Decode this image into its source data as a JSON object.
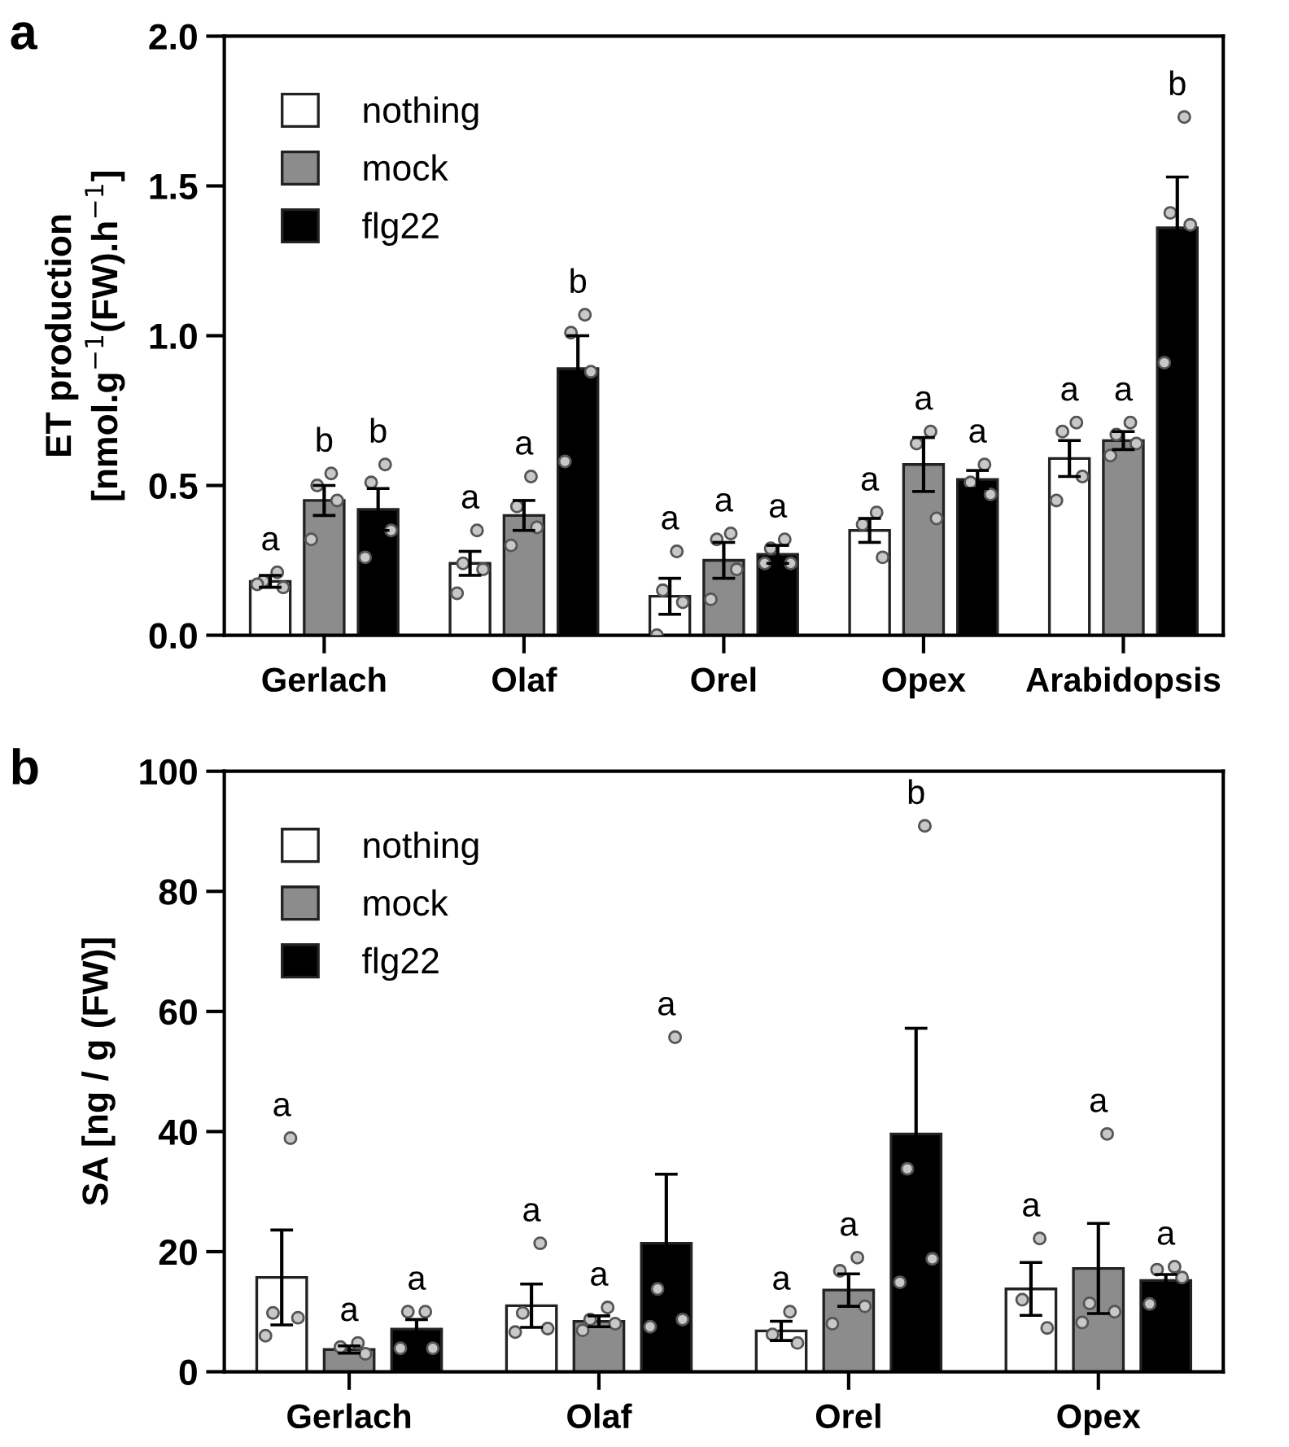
{
  "chart_data": [
    {
      "type": "bar",
      "title": "a",
      "ylabel": "ET production\n[nmol.g$^{−1}$(FW).h$^{−1}$]",
      "categories": [
        "Gerlach",
        "Olaf",
        "Orel",
        "Opex",
        "Arabidopsis"
      ],
      "ylim": [
        0,
        2.0
      ],
      "yticks": [
        {
          "value": 0,
          "label": "0.0"
        },
        0.5,
        {
          "value": 1,
          "label": "1.0"
        },
        1.5,
        {
          "value": 2,
          "label": "2.0"
        }
      ],
      "grid": false,
      "legend": "top left",
      "marker": "circle",
      "annotations": [
        "a",
        "b",
        "b",
        "a",
        "a",
        "b",
        "a",
        "a",
        "a",
        "a",
        "a",
        "a",
        "a",
        "a",
        "b"
      ],
      "series": [
        {
          "name": "nothing",
          "color": "#ffffff",
          "values": [
            0.18,
            0.24,
            0.13,
            0.35,
            0.59
          ],
          "errors": [
            0.02,
            0.04,
            0.06,
            0.04,
            0.06
          ]
        },
        {
          "name": "mock",
          "color": "#8c8c8c",
          "values": [
            0.45,
            0.4,
            0.25,
            0.57,
            0.65
          ],
          "errors": [
            0.05,
            0.05,
            0.06,
            0.09,
            0.03
          ]
        },
        {
          "name": "flg22",
          "color": "#000000",
          "values": [
            0.42,
            0.89,
            0.27,
            0.52,
            1.36
          ],
          "errors": [
            0.07,
            0.11,
            0.03,
            0.03,
            0.17
          ]
        },
        {
          "type": "scatter",
          "color": "#c8c8c8",
          "x": [
            "Gerlach",
            "Gerlach",
            "Gerlach",
            "Gerlach",
            "Olaf",
            "Olaf",
            "Olaf",
            "Olaf",
            "Orel",
            "Orel",
            "Orel",
            "Orel",
            "Opex",
            "Opex",
            "Opex",
            "Arabidopsis",
            "Arabidopsis",
            "Arabidopsis",
            "Arabidopsis"
          ],
          "values": [
            0.21,
            0.18,
            0.16,
            0.17,
            0.35,
            0.24,
            0.22,
            0.14,
            0.28,
            0.15,
            0.11,
            0.0,
            0.41,
            0.37,
            0.26,
            0.71,
            0.68,
            0.53,
            0.45
          ]
        },
        {
          "type": "scatter",
          "color": "#c8c8c8",
          "x": [
            "Gerlach",
            "Gerlach",
            "Gerlach",
            "Gerlach",
            "Olaf",
            "Olaf",
            "Olaf",
            "Olaf",
            "Orel",
            "Orel",
            "Orel",
            "Orel",
            "Opex",
            "Opex",
            "Opex",
            "Arabidopsis",
            "Arabidopsis",
            "Arabidopsis",
            "Arabidopsis"
          ],
          "values": [
            0.54,
            0.5,
            0.45,
            0.32,
            0.53,
            0.43,
            0.36,
            0.3,
            0.34,
            0.32,
            0.22,
            0.12,
            0.68,
            0.64,
            0.39,
            0.71,
            0.67,
            0.64,
            0.6
          ]
        },
        {
          "type": "scatter",
          "color": "#c8c8c8",
          "x": [
            "Gerlach",
            "Gerlach",
            "Gerlach",
            "Gerlach",
            "Olaf",
            "Olaf",
            "Olaf",
            "Olaf",
            "Orel",
            "Orel",
            "Orel",
            "Orel",
            "Opex",
            "Opex",
            "Opex",
            "Arabidopsis",
            "Arabidopsis",
            "Arabidopsis",
            "Arabidopsis"
          ],
          "values": [
            0.57,
            0.51,
            0.35,
            0.26,
            1.07,
            1.01,
            0.88,
            0.58,
            0.32,
            0.29,
            0.24,
            0.24,
            0.57,
            0.51,
            0.47,
            1.73,
            1.41,
            1.37,
            0.91
          ]
        }
      ]
    },
    {
      "type": "bar",
      "title": "b",
      "ylabel": "SA [ng / g (FW)]",
      "categories": [
        "Gerlach",
        "Olaf",
        "Orel",
        "Opex"
      ],
      "ylim": [
        0,
        100
      ],
      "yticks": [
        0,
        20,
        40,
        60,
        80,
        100
      ],
      "grid": false,
      "legend": "top left",
      "marker": "circle",
      "annotations": [
        "a",
        "a",
        "a",
        "a",
        "a",
        "a",
        "a",
        "a",
        "b",
        "a",
        "a",
        "a"
      ],
      "series": [
        {
          "name": "nothing",
          "color": "#ffffff",
          "values": [
            15.7,
            11.0,
            6.8,
            13.8
          ],
          "errors": [
            7.9,
            3.6,
            1.6,
            4.4
          ]
        },
        {
          "name": "mock",
          "color": "#8c8c8c",
          "values": [
            3.7,
            8.4,
            13.6,
            17.2
          ],
          "errors": [
            0.6,
            0.9,
            2.7,
            7.5
          ]
        },
        {
          "name": "flg22",
          "color": "#000000",
          "values": [
            7.1,
            21.4,
            39.6,
            15.2
          ],
          "errors": [
            1.6,
            11.5,
            17.6,
            1.0
          ]
        },
        {
          "type": "scatter",
          "color": "#c8c8c8",
          "x": [
            "Gerlach",
            "Gerlach",
            "Gerlach",
            "Gerlach",
            "Olaf",
            "Olaf",
            "Olaf",
            "Olaf",
            "Orel",
            "Orel",
            "Orel",
            "Opex",
            "Opex",
            "Opex"
          ],
          "values": [
            38.9,
            9.8,
            9.0,
            6.0,
            21.4,
            9.8,
            7.2,
            6.6,
            10.0,
            6.2,
            4.8,
            22.2,
            12.0,
            7.3
          ]
        },
        {
          "type": "scatter",
          "color": "#c8c8c8",
          "x": [
            "Gerlach",
            "Gerlach",
            "Gerlach",
            "Olaf",
            "Olaf",
            "Olaf",
            "Olaf",
            "Orel",
            "Orel",
            "Orel",
            "Orel",
            "Opex",
            "Opex",
            "Opex",
            "Opex"
          ],
          "values": [
            4.8,
            4.1,
            3.0,
            10.7,
            8.7,
            8.0,
            6.9,
            19.0,
            16.8,
            10.9,
            8.0,
            39.6,
            11.4,
            10.0,
            8.2
          ]
        },
        {
          "type": "scatter",
          "color": "#c8c8c8",
          "x": [
            "Gerlach",
            "Gerlach",
            "Gerlach",
            "Gerlach",
            "Olaf",
            "Olaf",
            "Olaf",
            "Olaf",
            "Orel",
            "Orel",
            "Orel",
            "Orel",
            "Opex",
            "Opex",
            "Opex",
            "Opex"
          ],
          "values": [
            10.0,
            10.0,
            3.9,
            3.9,
            55.7,
            13.8,
            8.7,
            7.5,
            90.9,
            33.8,
            18.8,
            14.9,
            17.5,
            17.0,
            15.7,
            11.3
          ]
        }
      ]
    }
  ]
}
